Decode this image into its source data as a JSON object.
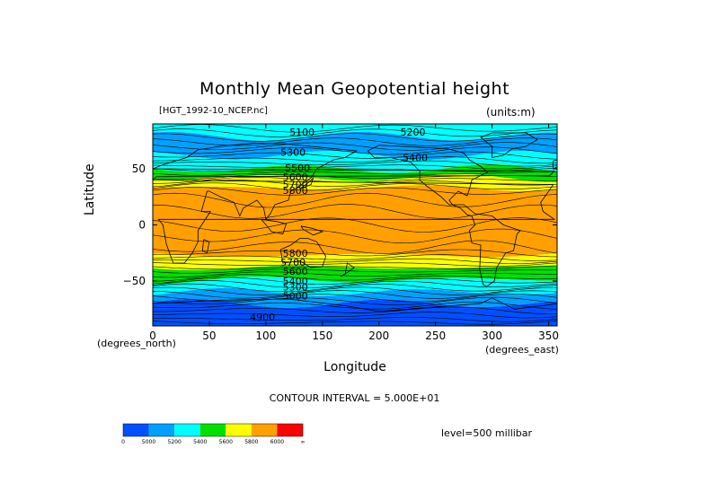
{
  "title": "Monthly Mean Geopotential height",
  "file_label": "[HGT_1992-10_NCEP.nc]",
  "units_label": "(units:m)",
  "contour_interval": "CONTOUR INTERVAL = 5.000E+01",
  "level_label": "level=500 millibar",
  "chart_data": {
    "type": "heatmap",
    "title": "Monthly Mean Geopotential height",
    "xlabel": "Longitude",
    "ylabel": "Latitude",
    "x_units": "(degrees_east)",
    "y_units": "(degrees_north)",
    "xlim": [
      0,
      357.5
    ],
    "ylim": [
      -90,
      90
    ],
    "x_ticks": [
      0,
      50,
      100,
      150,
      200,
      250,
      300,
      350
    ],
    "y_ticks": [
      50,
      0,
      -50
    ],
    "x_tick_labels": [
      "0",
      "50",
      "100",
      "150",
      "200",
      "250",
      "300",
      "350"
    ],
    "y_tick_labels": [
      "50",
      "0",
      "−50"
    ],
    "contour_labels": [
      {
        "text": "5100",
        "lon": 132,
        "lat": 83
      },
      {
        "text": "5200",
        "lon": 230,
        "lat": 83
      },
      {
        "text": "5300",
        "lon": 124,
        "lat": 65
      },
      {
        "text": "5400",
        "lon": 232,
        "lat": 60
      },
      {
        "text": "5500",
        "lon": 128,
        "lat": 51
      },
      {
        "text": "5600",
        "lon": 126,
        "lat": 43
      },
      {
        "text": "5700",
        "lon": 126,
        "lat": 36
      },
      {
        "text": "5800",
        "lon": 126,
        "lat": 31
      },
      {
        "text": "5800",
        "lon": 126,
        "lat": -25
      },
      {
        "text": "5700",
        "lon": 124,
        "lat": -33
      },
      {
        "text": "5600",
        "lon": 126,
        "lat": -41
      },
      {
        "text": "5400",
        "lon": 126,
        "lat": -50
      },
      {
        "text": "5300",
        "lon": 126,
        "lat": -55
      },
      {
        "text": "5000",
        "lon": 126,
        "lat": -63
      },
      {
        "text": "4900",
        "lon": 97,
        "lat": -82
      }
    ],
    "colorbar": {
      "colors": [
        "#0050ff",
        "#00a0ff",
        "#00ffff",
        "#00e000",
        "#ffff00",
        "#ffa000",
        "#ff0000"
      ],
      "labels": [
        "0",
        "5000",
        "5200",
        "5400",
        "5600",
        "5800",
        "6000",
        "∞"
      ]
    },
    "bands": [
      {
        "lat_top": 90,
        "lat_bottom": 79,
        "color": "#00ffff"
      },
      {
        "lat_top": 79,
        "lat_bottom": 62,
        "color": "#00a0ff"
      },
      {
        "lat_top": 62,
        "lat_bottom": 50,
        "color": "#00ffff"
      },
      {
        "lat_top": 50,
        "lat_bottom": 42,
        "color": "#00e000"
      },
      {
        "lat_top": 42,
        "lat_bottom": 33,
        "color": "#ffff00"
      },
      {
        "lat_top": 33,
        "lat_bottom": -27,
        "color": "#ffa000"
      },
      {
        "lat_top": -27,
        "lat_bottom": -38,
        "color": "#ffff00"
      },
      {
        "lat_top": -38,
        "lat_bottom": -49,
        "color": "#00e000"
      },
      {
        "lat_top": -49,
        "lat_bottom": -60,
        "color": "#00ffff"
      },
      {
        "lat_top": -60,
        "lat_bottom": -70,
        "color": "#00a0ff"
      },
      {
        "lat_top": -70,
        "lat_bottom": -90,
        "color": "#0050ff"
      }
    ]
  }
}
